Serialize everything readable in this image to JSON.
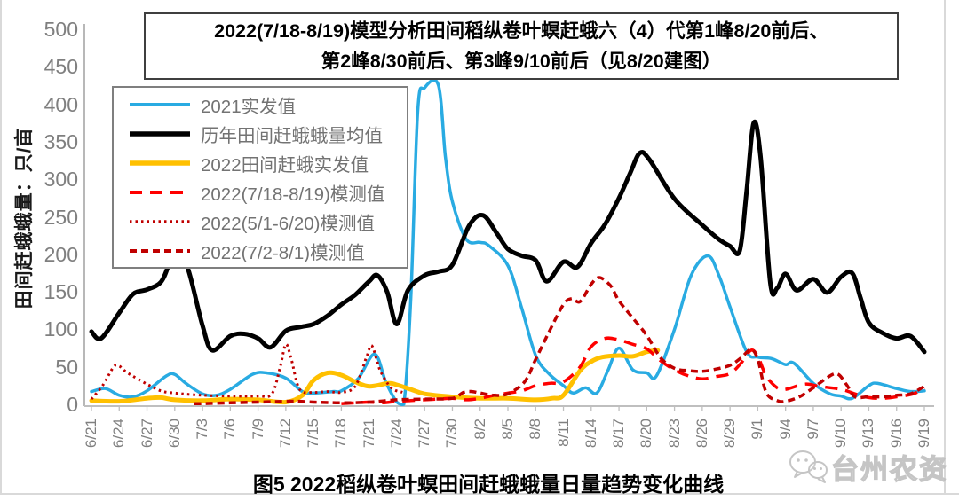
{
  "title": {
    "line1": "2022(7/18-8/19)模型分析田间稻纵卷叶螟赶蛾六（4）代第1峰8/20前后、",
    "line2": "第2峰8/30前后、第3峰9/10前后（见8/20建图）"
  },
  "y_axis_title": "田间赶蛾蛾量：只/亩",
  "caption": "图5  2022稻纵卷叶螟田间赶蛾蛾量日量趋势变化曲线",
  "watermark": {
    "text": "台州农资",
    "icon": "wechat-logo"
  },
  "chart_data": {
    "type": "line",
    "title": "2022(7/18-8/19)模型分析田间稻纵卷叶螟赶蛾六（4）代 第1峰8/20前后、第2峰8/30前后、第3峰9/10前后（见8/20建图）",
    "xlabel": "",
    "ylabel": "田间赶蛾蛾量：只/亩",
    "ylim": [
      0,
      500
    ],
    "y_ticks": [
      0,
      50,
      100,
      150,
      200,
      250,
      300,
      350,
      400,
      450,
      500
    ],
    "grid": false,
    "legend_position": "upper-left",
    "x_tick_labels": [
      "6/21",
      "6/24",
      "6/27",
      "6/30",
      "7/3",
      "7/6",
      "7/9",
      "7/12",
      "7/15",
      "7/18",
      "7/21",
      "7/24",
      "7/27",
      "7/30",
      "8/2",
      "8/5",
      "8/8",
      "8/11",
      "8/14",
      "8/17",
      "8/20",
      "8/23",
      "8/26",
      "8/29",
      "9/1",
      "9/4",
      "9/7",
      "9/10",
      "9/13",
      "9/16",
      "9/19"
    ],
    "x_unit": "date, one tick every 3 days; series x values are in tick units (0 = 6/21, 30 = 9/19)",
    "series": [
      {
        "name": "2021实发值",
        "color": "#29ABE2",
        "style": "solid",
        "width": 3.5,
        "points": [
          [
            0,
            17
          ],
          [
            0.5,
            21
          ],
          [
            1,
            12
          ],
          [
            1.5,
            10
          ],
          [
            2,
            18
          ],
          [
            2.7,
            38
          ],
          [
            3,
            40
          ],
          [
            3.4,
            28
          ],
          [
            4,
            14
          ],
          [
            4.5,
            12
          ],
          [
            5,
            20
          ],
          [
            5.8,
            40
          ],
          [
            6.3,
            42
          ],
          [
            7,
            35
          ],
          [
            7.6,
            17
          ],
          [
            8,
            15
          ],
          [
            8.7,
            17
          ],
          [
            9,
            18
          ],
          [
            9.6,
            34
          ],
          [
            10.2,
            67
          ],
          [
            10.6,
            30
          ],
          [
            11,
            3
          ],
          [
            11.25,
            0
          ],
          [
            11.5,
            140
          ],
          [
            11.75,
            390
          ],
          [
            12,
            422
          ],
          [
            12.5,
            425
          ],
          [
            12.75,
            330
          ],
          [
            13,
            270
          ],
          [
            13.5,
            220
          ],
          [
            14,
            216
          ],
          [
            14.3,
            212
          ],
          [
            15,
            185
          ],
          [
            15.5,
            128
          ],
          [
            16,
            65
          ],
          [
            16.5,
            40
          ],
          [
            17,
            25
          ],
          [
            17.35,
            15
          ],
          [
            17.8,
            22
          ],
          [
            18.2,
            15
          ],
          [
            18.6,
            45
          ],
          [
            19,
            75
          ],
          [
            19.5,
            46
          ],
          [
            20,
            42
          ],
          [
            20.35,
            38
          ],
          [
            21,
            100
          ],
          [
            21.6,
            172
          ],
          [
            22.2,
            198
          ],
          [
            22.6,
            172
          ],
          [
            23,
            130
          ],
          [
            23.6,
            70
          ],
          [
            24,
            63
          ],
          [
            24.5,
            61
          ],
          [
            25,
            53
          ],
          [
            25.3,
            55
          ],
          [
            26,
            28
          ],
          [
            26.6,
            14
          ],
          [
            27,
            11
          ],
          [
            27.4,
            8
          ],
          [
            28,
            25
          ],
          [
            28.3,
            28
          ],
          [
            29,
            21
          ],
          [
            29.5,
            17
          ],
          [
            30,
            18
          ]
        ]
      },
      {
        "name": "历年田间赶蛾蛾量均值",
        "color": "#000000",
        "style": "solid",
        "width": 5,
        "points": [
          [
            0,
            97
          ],
          [
            0.35,
            88
          ],
          [
            1,
            122
          ],
          [
            1.5,
            147
          ],
          [
            2,
            153
          ],
          [
            2.5,
            163
          ],
          [
            2.8,
            188
          ],
          [
            3.05,
            218
          ],
          [
            3.5,
            178
          ],
          [
            4,
            105
          ],
          [
            4.35,
            72
          ],
          [
            5,
            91
          ],
          [
            5.5,
            94
          ],
          [
            6,
            88
          ],
          [
            6.45,
            76
          ],
          [
            7,
            98
          ],
          [
            7.5,
            103
          ],
          [
            8,
            107
          ],
          [
            8.5,
            118
          ],
          [
            9,
            133
          ],
          [
            9.5,
            146
          ],
          [
            10,
            164
          ],
          [
            10.3,
            172
          ],
          [
            10.65,
            150
          ],
          [
            11,
            107
          ],
          [
            11.4,
            152
          ],
          [
            12,
            172
          ],
          [
            12.5,
            177
          ],
          [
            13,
            186
          ],
          [
            13.6,
            238
          ],
          [
            14.1,
            252
          ],
          [
            14.6,
            228
          ],
          [
            15,
            207
          ],
          [
            15.5,
            198
          ],
          [
            16,
            192
          ],
          [
            16.4,
            164
          ],
          [
            17,
            190
          ],
          [
            17.5,
            183
          ],
          [
            18,
            215
          ],
          [
            18.5,
            240
          ],
          [
            19,
            275
          ],
          [
            19.4,
            308
          ],
          [
            19.75,
            335
          ],
          [
            20.1,
            326
          ],
          [
            21,
            274
          ],
          [
            22,
            239
          ],
          [
            22.6,
            220
          ],
          [
            23,
            211
          ],
          [
            23.35,
            205
          ],
          [
            23.6,
            285
          ],
          [
            23.85,
            375
          ],
          [
            24.1,
            330
          ],
          [
            24.45,
            162
          ],
          [
            24.7,
            155
          ],
          [
            25,
            174
          ],
          [
            25.4,
            152
          ],
          [
            26,
            167
          ],
          [
            26.5,
            149
          ],
          [
            27,
            170
          ],
          [
            27.4,
            175
          ],
          [
            27.7,
            142
          ],
          [
            28,
            109
          ],
          [
            28.5,
            95
          ],
          [
            29,
            88
          ],
          [
            29.5,
            91
          ],
          [
            30,
            70
          ]
        ]
      },
      {
        "name": "2022田间赶蛾实发值",
        "color": "#FFC000",
        "style": "solid",
        "width": 5,
        "points": [
          [
            0,
            5
          ],
          [
            1,
            4
          ],
          [
            2,
            8
          ],
          [
            2.5,
            9
          ],
          [
            3,
            6
          ],
          [
            4,
            5
          ],
          [
            5,
            7
          ],
          [
            6,
            6
          ],
          [
            7,
            3
          ],
          [
            7.6,
            12
          ],
          [
            8,
            32
          ],
          [
            8.5,
            42
          ],
          [
            9,
            39
          ],
          [
            9.5,
            30
          ],
          [
            10,
            24
          ],
          [
            10.7,
            28
          ],
          [
            11,
            26
          ],
          [
            11.5,
            20
          ],
          [
            12,
            14
          ],
          [
            13,
            10
          ],
          [
            14,
            8
          ],
          [
            15,
            8
          ],
          [
            16,
            6
          ],
          [
            16.6,
            8
          ],
          [
            17,
            12
          ],
          [
            17.6,
            45
          ],
          [
            18,
            57
          ],
          [
            18.4,
            63
          ],
          [
            19,
            65
          ],
          [
            19.5,
            64
          ],
          [
            20,
            70
          ],
          [
            20.4,
            72
          ]
        ]
      },
      {
        "name": "2022(7/18-8/19)模测值",
        "color": "#FF0000",
        "style": "dash",
        "width": 3.5,
        "points": [
          [
            9,
            1
          ],
          [
            9.5,
            2
          ],
          [
            10,
            3
          ],
          [
            10.5,
            2
          ],
          [
            11,
            4
          ],
          [
            11.5,
            5
          ],
          [
            12,
            6
          ],
          [
            12.5,
            7
          ],
          [
            13,
            8
          ],
          [
            13.5,
            6
          ],
          [
            14,
            8
          ],
          [
            14.5,
            12
          ],
          [
            15,
            15
          ],
          [
            15.5,
            18
          ],
          [
            16,
            25
          ],
          [
            16.5,
            28
          ],
          [
            17,
            30
          ],
          [
            17.6,
            50
          ],
          [
            18,
            77
          ],
          [
            18.5,
            88
          ],
          [
            19,
            86
          ],
          [
            19.5,
            80
          ],
          [
            20,
            74
          ],
          [
            20.5,
            58
          ],
          [
            21,
            46
          ],
          [
            21.5,
            38
          ],
          [
            22,
            34
          ],
          [
            22.5,
            37
          ],
          [
            23,
            41
          ],
          [
            23.4,
            55
          ],
          [
            23.75,
            72
          ],
          [
            24,
            64
          ],
          [
            24.3,
            38
          ],
          [
            24.7,
            22
          ],
          [
            25,
            20
          ],
          [
            25.7,
            27
          ],
          [
            26.2,
            24
          ],
          [
            27,
            20
          ],
          [
            27.5,
            14
          ],
          [
            28,
            9
          ],
          [
            28.5,
            8
          ],
          [
            29,
            10
          ],
          [
            29.6,
            14
          ],
          [
            30,
            22
          ]
        ]
      },
      {
        "name": "2022(5/1-6/20)模测值",
        "color": "#C00000",
        "style": "dot",
        "width": 3,
        "points": [
          [
            0,
            7
          ],
          [
            0.4,
            25
          ],
          [
            0.8,
            50
          ],
          [
            1,
            51
          ],
          [
            1.3,
            42
          ],
          [
            2,
            27
          ],
          [
            2.5,
            18
          ],
          [
            3,
            15
          ],
          [
            4,
            12
          ],
          [
            5,
            11
          ],
          [
            6,
            11
          ],
          [
            6.5,
            14
          ],
          [
            6.8,
            50
          ],
          [
            7,
            80
          ],
          [
            7.2,
            60
          ],
          [
            7.5,
            20
          ],
          [
            8,
            16
          ],
          [
            8.5,
            17
          ],
          [
            9,
            16
          ],
          [
            9.5,
            24
          ],
          [
            9.9,
            62
          ],
          [
            10.1,
            78
          ],
          [
            10.4,
            45
          ],
          [
            10.8,
            22
          ],
          [
            11.2,
            16
          ]
        ]
      },
      {
        "name": "2022(7/2-8/1)模测值",
        "color": "#C00000",
        "style": "shortdash",
        "width": 3.5,
        "points": [
          [
            3.7,
            1
          ],
          [
            4,
            1
          ],
          [
            5,
            2
          ],
          [
            6,
            3
          ],
          [
            7,
            4
          ],
          [
            7.5,
            4
          ],
          [
            8,
            3
          ],
          [
            9,
            2
          ],
          [
            10,
            3
          ],
          [
            11,
            6
          ],
          [
            12,
            7
          ],
          [
            13,
            8
          ],
          [
            13.4,
            16
          ],
          [
            13.7,
            17
          ],
          [
            14,
            15
          ],
          [
            14.5,
            12
          ],
          [
            15,
            14
          ],
          [
            15.6,
            30
          ],
          [
            16,
            60
          ],
          [
            16.5,
            98
          ],
          [
            17,
            133
          ],
          [
            17.3,
            141
          ],
          [
            17.6,
            137
          ],
          [
            18,
            160
          ],
          [
            18.3,
            169
          ],
          [
            18.7,
            158
          ],
          [
            19,
            138
          ],
          [
            19.5,
            115
          ],
          [
            20,
            92
          ],
          [
            20.5,
            62
          ],
          [
            21,
            48
          ],
          [
            21.5,
            45
          ],
          [
            22,
            44
          ],
          [
            22.5,
            47
          ],
          [
            23,
            52
          ],
          [
            23.4,
            62
          ],
          [
            23.75,
            73
          ],
          [
            24,
            60
          ],
          [
            24.3,
            16
          ],
          [
            24.7,
            5
          ],
          [
            25,
            4
          ],
          [
            25.5,
            10
          ],
          [
            26,
            22
          ],
          [
            26.6,
            38
          ],
          [
            26.9,
            40
          ],
          [
            27.2,
            26
          ],
          [
            27.5,
            10
          ],
          [
            28,
            10
          ],
          [
            28.5,
            10
          ],
          [
            29,
            12
          ],
          [
            29.5,
            14
          ],
          [
            30,
            24
          ]
        ]
      }
    ]
  }
}
